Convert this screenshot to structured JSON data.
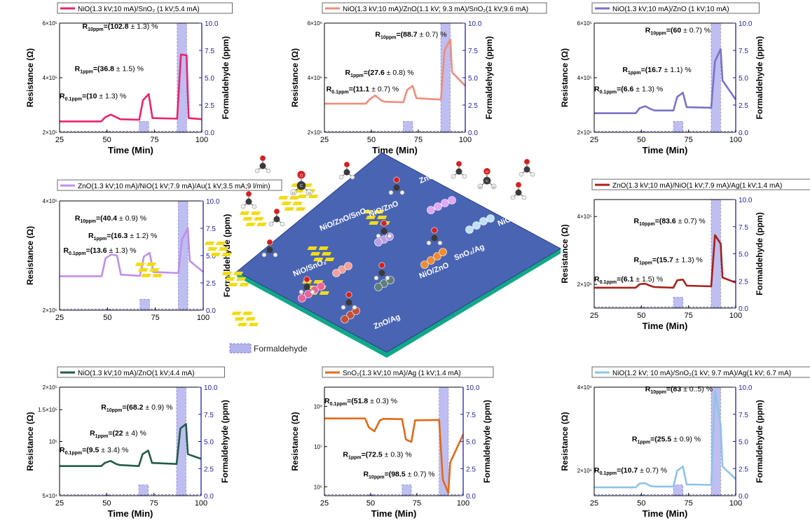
{
  "figure": {
    "legend_swatch_label": "Formaldehyde",
    "colors": {
      "formaldehyde_band": "#b3b3ee",
      "gas_axis": "#1f1fa8",
      "board": "#4a64b4",
      "board_edge": "#13a78a",
      "pad": "#f2dc14"
    }
  },
  "center_diagram": {
    "board_labels": [
      "ZnO/Au",
      "NiO/ZnO",
      "NiO/ZnO/SnO₂",
      "NiO/SnO₂",
      "SnO₂/Ag",
      "NiO/ZnO",
      "NiO/SnO₂",
      "ZnO/Ag"
    ],
    "molecule_atoms": {
      "carbon": "C",
      "oxygen": "O",
      "hydrogen": "H"
    }
  },
  "chart_data": [
    {
      "type": "line",
      "legend": "NiO(1.3 kV;10 mA)/SnO₂ (1 kV;5.4 mA)",
      "color": "#e8246e",
      "xlabel": "Time (Min)",
      "ylabel": "Resistance (Ω)",
      "y2label": "Formaldehyde (ppm)",
      "xlim": [
        25,
        100
      ],
      "xticks": [
        "25",
        "50",
        "75",
        "100"
      ],
      "ylim": [
        200000,
        600000
      ],
      "ylog": false,
      "yticks": [
        {
          "v": 200000,
          "label": "2×10⁵"
        },
        {
          "v": 400000,
          "label": "4×10⁵"
        },
        {
          "v": 600000,
          "label": "6×10⁵"
        }
      ],
      "y2lim": [
        0,
        10
      ],
      "y2ticks": [
        "0.0",
        "2.5",
        "5.0",
        "7.5",
        "10.0"
      ],
      "gas_pulses": [
        {
          "start": 49,
          "end": 52,
          "ppm": 0.1
        },
        {
          "start": 67,
          "end": 72,
          "ppm": 1
        },
        {
          "start": 87,
          "end": 92,
          "ppm": 10
        }
      ],
      "x": [
        25,
        47,
        49,
        52,
        55,
        57,
        67,
        69,
        72,
        74,
        87,
        89,
        92,
        93,
        100
      ],
      "y": [
        240000,
        240000,
        255000,
        265000,
        255000,
        248000,
        246000,
        318000,
        340000,
        252000,
        250000,
        485000,
        482000,
        252000,
        248000
      ],
      "annotations": [
        {
          "x": 37,
          "y": 580000,
          "base": "R",
          "sub": "10ppm",
          "value": "=(102.8",
          "rest": " ± 1.3) %"
        },
        {
          "x": 33,
          "y": 425000,
          "base": "R",
          "sub": "1ppm",
          "value": "=(36.8",
          "rest": " ± 1.5) %"
        },
        {
          "x": 25,
          "y": 325000,
          "base": "R",
          "sub": "0.1ppm",
          "value": "=(10",
          "rest": " ± 1.3) %"
        }
      ]
    },
    {
      "type": "line",
      "legend": "NiO(1.3 kV;10 mA)/ZnO(1.1 kV; 9.3 mA)/SnO₂(1 kV;9.6 mA)",
      "color": "#f08c7c",
      "xlabel": "Time (Min)",
      "ylabel": "Resistance (Ω)",
      "y2label": "Formaldehyde (ppm)",
      "xlim": [
        25,
        100
      ],
      "xticks": [
        "25",
        "50",
        "75",
        "100"
      ],
      "ylim": [
        2000000,
        6000000
      ],
      "ylog": false,
      "yticks": [
        {
          "v": 2000000,
          "label": "2×10⁶"
        },
        {
          "v": 4000000,
          "label": "4×10⁶"
        },
        {
          "v": 6000000,
          "label": "6×10⁶"
        }
      ],
      "y2lim": [
        0,
        10
      ],
      "y2ticks": [
        "0.0",
        "2.5",
        "5.0",
        "7.5",
        "10.0"
      ],
      "gas_pulses": [
        {
          "start": 49,
          "end": 52,
          "ppm": 0.1
        },
        {
          "start": 67,
          "end": 72,
          "ppm": 1
        },
        {
          "start": 87,
          "end": 92,
          "ppm": 10
        }
      ],
      "x": [
        25,
        47,
        49,
        52,
        55,
        57,
        67,
        69,
        72,
        74,
        87,
        89,
        92,
        93,
        100
      ],
      "y": [
        3050000,
        3050000,
        3200000,
        3350000,
        3180000,
        3120000,
        3100000,
        3550000,
        3700000,
        3250000,
        3200000,
        5000000,
        5400000,
        4200000,
        3700000
      ],
      "annotations": [
        {
          "x": 52,
          "y": 5500000,
          "base": "R",
          "sub": "10ppm",
          "value": "=(88.7",
          "rest": " ± 0.7) %"
        },
        {
          "x": 36,
          "y": 4100000,
          "base": "R",
          "sub": "1ppm",
          "value": "=(27.6",
          "rest": " ± 0.8) %"
        },
        {
          "x": 26,
          "y": 3500000,
          "base": "R",
          "sub": "0.1ppm",
          "value": "=(11.1",
          "rest": " ± 0.7) %"
        }
      ]
    },
    {
      "type": "line",
      "legend": "NiO(1.3 kV;10 mA)/ZnO (1 kV;10 mA)",
      "color": "#7a72c8",
      "xlabel": "Time (Min)",
      "ylabel": "Resistance (Ω)",
      "y2label": "Formaldehyde (ppm)",
      "xlim": [
        25,
        100
      ],
      "xticks": [
        "25",
        "50",
        "75",
        "100"
      ],
      "ylim": [
        200000,
        600000
      ],
      "ylog": false,
      "yticks": [
        {
          "v": 200000,
          "label": "2×10⁵"
        },
        {
          "v": 400000,
          "label": "4×10⁵"
        },
        {
          "v": 600000,
          "label": "6×10⁵"
        }
      ],
      "y2lim": [
        0,
        10
      ],
      "y2ticks": [
        "0.0",
        "2.5",
        "5.0",
        "7.5",
        "10.0"
      ],
      "gas_pulses": [
        {
          "start": 49,
          "end": 52,
          "ppm": 0.1
        },
        {
          "start": 67,
          "end": 72,
          "ppm": 1
        },
        {
          "start": 87,
          "end": 92,
          "ppm": 10
        }
      ],
      "x": [
        25,
        47,
        49,
        52,
        55,
        57,
        67,
        69,
        72,
        74,
        87,
        89,
        92,
        93,
        100
      ],
      "y": [
        270000,
        270000,
        288000,
        296000,
        285000,
        280000,
        280000,
        330000,
        345000,
        292000,
        290000,
        460000,
        505000,
        390000,
        320000
      ],
      "annotations": [
        {
          "x": 52,
          "y": 565000,
          "base": "R",
          "sub": "10ppm",
          "value": "=(60",
          "rest": " ± 0.7) %"
        },
        {
          "x": 40,
          "y": 420000,
          "base": "R",
          "sub": "1ppm",
          "value": "=(16.7",
          "rest": " ± 1.1) %"
        },
        {
          "x": 25,
          "y": 350000,
          "base": "R",
          "sub": "0.1ppm",
          "value": "=(6.6",
          "rest": " ± 1.3) %"
        }
      ]
    },
    {
      "type": "line",
      "legend": "ZnO(1.3 kV;10 mA)/NiO(1 kV;7.9 mA)/Au(1 kV;3.5 mA;9 l/min)",
      "color": "#c08ef0",
      "xlabel": "",
      "ylabel": "Resistance (Ω)",
      "y2label": "Formaldehyde (ppm)",
      "xlim": [
        25,
        100
      ],
      "xticks": [
        "25",
        "50",
        "75",
        "100"
      ],
      "ylim": [
        200000,
        400000
      ],
      "ylog": false,
      "yticks": [
        {
          "v": 200000,
          "label": "2×10⁵"
        },
        {
          "v": 400000,
          "label": "4×10⁵"
        }
      ],
      "y2lim": [
        0,
        10
      ],
      "y2ticks": [
        "0.0",
        "2.5",
        "5.0",
        "7.5",
        "10.0"
      ],
      "gas_pulses": [
        {
          "start": 49,
          "end": 52,
          "ppm": 0.1
        },
        {
          "start": 67,
          "end": 72,
          "ppm": 1
        },
        {
          "start": 87,
          "end": 92,
          "ppm": 10
        }
      ],
      "x": [
        25,
        47,
        49,
        52,
        55,
        57,
        67,
        69,
        72,
        74,
        87,
        89,
        92,
        93,
        100
      ],
      "y": [
        262000,
        262000,
        295000,
        302000,
        300000,
        265000,
        263000,
        298000,
        305000,
        270000,
        268000,
        330000,
        350000,
        290000,
        270000
      ],
      "annotations": [
        {
          "x": 33,
          "y": 364000,
          "base": "R",
          "sub": "10ppm",
          "value": "=(40.4",
          "rest": " ± 0.9) %"
        },
        {
          "x": 40,
          "y": 332000,
          "base": "R",
          "sub": "1ppm",
          "value": "=(16.3",
          "rest": " ± 1.2) %"
        },
        {
          "x": 27,
          "y": 305000,
          "base": "R",
          "sub": "0.1ppm",
          "value": "=(13.6",
          "rest": " ± 1.3) %"
        }
      ]
    },
    {
      "type": "line",
      "legend": "ZnO(1.3 kV;10 mA)/NiO(1 kV;7.9 mA)/Ag(1 kV;1.4 mA)",
      "color": "#a82018",
      "xlabel": "Time (Min)",
      "ylabel": "Resistance (Ω)",
      "y2label": "Formaldehyde (ppm)",
      "xlim": [
        25,
        100
      ],
      "xticks": [
        "25",
        "50",
        "75",
        "100"
      ],
      "ylim": [
        130000,
        450000
      ],
      "ylog": false,
      "yticks": [
        {
          "v": 200000,
          "label": "2×10⁵"
        },
        {
          "v": 400000,
          "label": "4×10⁵"
        }
      ],
      "y2lim": [
        0,
        10
      ],
      "y2ticks": [
        "0.0",
        "2.5",
        "5.0",
        "7.5",
        "10.0"
      ],
      "gas_pulses": [
        {
          "start": 49,
          "end": 52,
          "ppm": 0.1
        },
        {
          "start": 67,
          "end": 72,
          "ppm": 1
        },
        {
          "start": 87,
          "end": 92,
          "ppm": 10
        }
      ],
      "x": [
        25,
        47,
        49,
        52,
        55,
        57,
        67,
        69,
        72,
        74,
        87,
        89,
        92,
        93,
        100
      ],
      "y": [
        190000,
        190000,
        200000,
        202000,
        195000,
        192000,
        190000,
        212000,
        214000,
        196000,
        194000,
        345000,
        320000,
        220000,
        205000
      ],
      "annotations": [
        {
          "x": 46,
          "y": 380000,
          "base": "R",
          "sub": "10ppm",
          "value": "=(83.6",
          "rest": " ± 0.7) %"
        },
        {
          "x": 46,
          "y": 265000,
          "base": "R",
          "sub": "1ppm",
          "value": "=(15.7",
          "rest": " ± 1.3) %"
        },
        {
          "x": 25,
          "y": 208000,
          "base": "R",
          "sub": "0.1ppm",
          "value": "=(6.1",
          "rest": " ± 1.5) %"
        }
      ]
    },
    {
      "type": "line",
      "legend": "NiO(1.3 kV;10 mA)/ZnO(1 kV;4.4 mA)",
      "color": "#235c46",
      "xlabel": "Time (Min)",
      "ylabel": "Resistance (Ω)",
      "y2label": "Formaldehyde (ppm)",
      "xlim": [
        25,
        100
      ],
      "xticks": [
        "25",
        "50",
        "75",
        "100"
      ],
      "ylim": [
        50000,
        200000
      ],
      "ylog": true,
      "yticks": [
        {
          "v": 50000,
          "label": "5×10⁴"
        },
        {
          "v": 100000,
          "label": "10⁵"
        },
        {
          "v": 150000,
          "label": "1.5×10⁵"
        },
        {
          "v": 200000,
          "label": "2×10⁵"
        }
      ],
      "y2lim": [
        0,
        10
      ],
      "y2ticks": [
        "0.0",
        "2.5",
        "5.0",
        "7.5",
        "10.0"
      ],
      "gas_pulses": [
        {
          "start": 49,
          "end": 52,
          "ppm": 0.1
        },
        {
          "start": 67,
          "end": 72,
          "ppm": 1
        },
        {
          "start": 87,
          "end": 92,
          "ppm": 10
        }
      ],
      "x": [
        25,
        47,
        49,
        52,
        55,
        57,
        67,
        69,
        72,
        74,
        87,
        89,
        92,
        93,
        100
      ],
      "y": [
        73000,
        73000,
        76000,
        78000,
        75000,
        74000,
        73000,
        85000,
        89000,
        76000,
        75000,
        118000,
        125000,
        85000,
        80000
      ],
      "annotations": [
        {
          "x": 47,
          "y": 150000,
          "base": "R",
          "sub": "10ppm",
          "value": "=(68.2",
          "rest": " ± 0.9) %"
        },
        {
          "x": 41,
          "y": 108000,
          "base": "R",
          "sub": "1ppm",
          "value": "=(22",
          "rest": " ± 4) %"
        },
        {
          "x": 25,
          "y": 87000,
          "base": "R",
          "sub": "0.1ppm",
          "value": "=(9.5",
          "rest": " ± 3.4) %"
        }
      ]
    },
    {
      "type": "line",
      "legend": "SnO₂(1.3 kV;10 mA)/Ag (1 kV;1.4 mA)",
      "color": "#e06a16",
      "xlabel": "Time (Min)",
      "ylabel": "Resistance (Ω)",
      "y2label": "Formaldehyde (ppm)",
      "xlim": [
        25,
        100
      ],
      "xticks": [
        "25",
        "50",
        "75",
        "100"
      ],
      "ylim": [
        600000,
        300000000
      ],
      "ylog": true,
      "yticks": [
        {
          "v": 1000000,
          "label": "10⁶"
        },
        {
          "v": 10000000,
          "label": "10⁷"
        },
        {
          "v": 100000000,
          "label": "10⁸"
        }
      ],
      "y2lim": [
        0,
        10
      ],
      "y2ticks": [
        "0.0",
        "2.5",
        "5.0",
        "7.5",
        "10.0"
      ],
      "gas_pulses": [
        {
          "start": 49,
          "end": 52,
          "ppm": 0.1
        },
        {
          "start": 67,
          "end": 72,
          "ppm": 1
        },
        {
          "start": 87,
          "end": 92,
          "ppm": 10
        }
      ],
      "x": [
        25,
        47,
        49,
        52,
        55,
        57,
        67,
        69,
        72,
        74,
        87,
        89,
        92,
        93,
        100
      ],
      "y": [
        50000000,
        50000000,
        30000000,
        24000000,
        45000000,
        49000000,
        48000000,
        15000000,
        13000000,
        45000000,
        46000000,
        1500000,
        700000,
        4000000,
        20000000
      ],
      "annotations": [
        {
          "x": 25,
          "y": 120000000,
          "base": "R",
          "sub": "0.1ppm",
          "value": "=(51.8",
          "rest": " ± 0.3) %"
        },
        {
          "x": 35,
          "y": 5500000,
          "base": "R",
          "sub": "1ppm",
          "value": "=(72.5",
          "rest": " ± 0.3) %"
        },
        {
          "x": 46,
          "y": 1800000,
          "base": "R",
          "sub": "10ppm",
          "value": "=(98.5",
          "rest": " ± 0.7) %"
        }
      ]
    },
    {
      "type": "line",
      "legend": "NiO(1.2 kV; 10 mA)/SnO₂(1 kV; 9.7 mA)/Ag(1 kV; 6.7 mA)",
      "color": "#8ec4e6",
      "xlabel": "Time (Min)",
      "ylabel": "Resistance (Ω)",
      "y2label": "Formaldehyde (ppm)",
      "xlim": [
        25,
        100
      ],
      "xticks": [
        "25",
        "50",
        "75",
        "100"
      ],
      "ylim": [
        1400000,
        4000000
      ],
      "ylog": false,
      "yticks": [
        {
          "v": 2000000,
          "label": "2×10⁶"
        },
        {
          "v": 4000000,
          "label": "4×10⁶"
        }
      ],
      "y2lim": [
        0,
        10
      ],
      "y2ticks": [
        "0.0",
        "2.5",
        "5.0",
        "7.5",
        "10.0"
      ],
      "gas_pulses": [
        {
          "start": 49,
          "end": 52,
          "ppm": 0.1
        },
        {
          "start": 67,
          "end": 72,
          "ppm": 1
        },
        {
          "start": 87,
          "end": 92,
          "ppm": 10
        }
      ],
      "x": [
        25,
        47,
        49,
        52,
        55,
        57,
        67,
        69,
        72,
        74,
        87,
        89,
        92,
        93,
        100
      ],
      "y": [
        1600000,
        1600000,
        1690000,
        1700000,
        1630000,
        1620000,
        1620000,
        2000000,
        2100000,
        1670000,
        1660000,
        3900000,
        3100000,
        2100000,
        1800000
      ],
      "annotations": [
        {
          "x": 52,
          "y": 3900000,
          "base": "R",
          "sub": "10ppm",
          "value": "=(83",
          "rest": " ± 0..5) %"
        },
        {
          "x": 45,
          "y": 2700000,
          "base": "R",
          "sub": "1ppm",
          "value": "=(25.5",
          "rest": " ± 0.9) %"
        },
        {
          "x": 25,
          "y": 1950000,
          "base": "R",
          "sub": "0.1ppm",
          "value": "=(10.7",
          "rest": " ± 0.7) %"
        }
      ]
    }
  ]
}
